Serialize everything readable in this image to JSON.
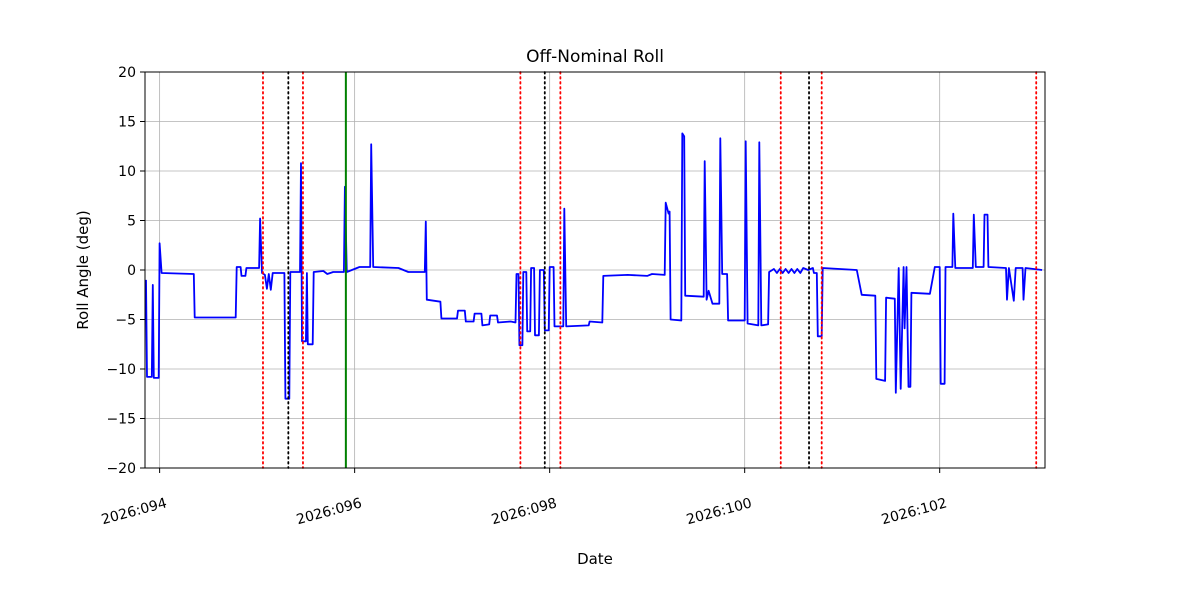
{
  "figure": {
    "title": "Off-Nominal Roll",
    "xlabel": "Date",
    "ylabel": "Roll Angle (deg)"
  },
  "chart_data": {
    "type": "line",
    "title": "Off-Nominal Roll",
    "xlabel": "Date",
    "ylabel": "Roll Angle (deg)",
    "xlim": [
      93.85,
      103.08
    ],
    "ylim": [
      -20,
      20
    ],
    "grid": true,
    "x_ticks": [
      {
        "value": 94,
        "label": "2026:094"
      },
      {
        "value": 96,
        "label": "2026:096"
      },
      {
        "value": 98,
        "label": "2026:098"
      },
      {
        "value": 100,
        "label": "2026:100"
      },
      {
        "value": 102,
        "label": "2026:102"
      }
    ],
    "y_ticks": [
      {
        "value": 20,
        "label": "20"
      },
      {
        "value": 15,
        "label": "15"
      },
      {
        "value": 10,
        "label": "10"
      },
      {
        "value": 5,
        "label": "5"
      },
      {
        "value": 0,
        "label": "0"
      },
      {
        "value": -5,
        "label": "−5"
      },
      {
        "value": -10,
        "label": "−10"
      },
      {
        "value": -15,
        "label": "−15"
      },
      {
        "value": -20,
        "label": "−20"
      }
    ],
    "colors": {
      "line": "#0000ff",
      "red_event": "#ff0000",
      "black_event": "#000000",
      "green_event": "#008000",
      "grid": "#b0b0b0",
      "frame": "#000000"
    },
    "event_lines": {
      "red_dotted": [
        95.06,
        95.47,
        97.7,
        98.11,
        100.37,
        100.79,
        102.99
      ],
      "black_dotted": [
        95.32,
        97.95,
        100.66
      ],
      "green_solid": [
        95.91
      ]
    },
    "series": [
      {
        "name": "roll_angle_deg",
        "color": "#0000ff",
        "points": [
          [
            93.86,
            -1.0
          ],
          [
            93.87,
            -10.8
          ],
          [
            93.92,
            -10.8
          ],
          [
            93.93,
            -1.5
          ],
          [
            93.94,
            -10.9
          ],
          [
            93.99,
            -10.9
          ],
          [
            94.0,
            2.7
          ],
          [
            94.02,
            -0.3
          ],
          [
            94.35,
            -0.4
          ],
          [
            94.36,
            -4.8
          ],
          [
            94.78,
            -4.8
          ],
          [
            94.79,
            0.3
          ],
          [
            94.83,
            0.3
          ],
          [
            94.84,
            -0.6
          ],
          [
            94.88,
            -0.6
          ],
          [
            94.89,
            0.2
          ],
          [
            95.02,
            0.2
          ],
          [
            95.03,
            5.2
          ],
          [
            95.05,
            -0.3
          ],
          [
            95.08,
            -0.5
          ],
          [
            95.1,
            -1.9
          ],
          [
            95.12,
            -0.4
          ],
          [
            95.14,
            -2.0
          ],
          [
            95.16,
            -0.3
          ],
          [
            95.28,
            -0.3
          ],
          [
            95.29,
            -13.0
          ],
          [
            95.33,
            -13.0
          ],
          [
            95.34,
            -0.2
          ],
          [
            95.44,
            -0.2
          ],
          [
            95.45,
            10.8
          ],
          [
            95.46,
            -7.2
          ],
          [
            95.5,
            -7.2
          ],
          [
            95.51,
            -0.3
          ],
          [
            95.52,
            -7.5
          ],
          [
            95.57,
            -7.5
          ],
          [
            95.58,
            -0.2
          ],
          [
            95.68,
            -0.1
          ],
          [
            95.72,
            -0.4
          ],
          [
            95.78,
            -0.2
          ],
          [
            95.89,
            -0.2
          ],
          [
            95.9,
            8.4
          ],
          [
            95.92,
            -0.2
          ],
          [
            96.05,
            0.3
          ],
          [
            96.16,
            0.3
          ],
          [
            96.17,
            12.7
          ],
          [
            96.19,
            0.3
          ],
          [
            96.45,
            0.2
          ],
          [
            96.55,
            -0.2
          ],
          [
            96.72,
            -0.2
          ],
          [
            96.73,
            4.9
          ],
          [
            96.74,
            -3.0
          ],
          [
            96.88,
            -3.2
          ],
          [
            96.89,
            -4.9
          ],
          [
            97.05,
            -4.9
          ],
          [
            97.06,
            -4.1
          ],
          [
            97.13,
            -4.1
          ],
          [
            97.14,
            -5.2
          ],
          [
            97.22,
            -5.2
          ],
          [
            97.23,
            -4.4
          ],
          [
            97.3,
            -4.4
          ],
          [
            97.31,
            -5.6
          ],
          [
            97.38,
            -5.5
          ],
          [
            97.39,
            -4.6
          ],
          [
            97.46,
            -4.6
          ],
          [
            97.47,
            -5.3
          ],
          [
            97.6,
            -5.2
          ],
          [
            97.65,
            -5.3
          ],
          [
            97.66,
            -0.4
          ],
          [
            97.68,
            -0.4
          ],
          [
            97.69,
            -7.6
          ],
          [
            97.72,
            -7.6
          ],
          [
            97.73,
            -0.2
          ],
          [
            97.76,
            -0.2
          ],
          [
            97.77,
            -6.2
          ],
          [
            97.8,
            -6.2
          ],
          [
            97.81,
            0.2
          ],
          [
            97.84,
            0.2
          ],
          [
            97.85,
            -6.6
          ],
          [
            97.89,
            -6.6
          ],
          [
            97.9,
            0.0
          ],
          [
            97.94,
            0.0
          ],
          [
            97.95,
            -6.1
          ],
          [
            97.99,
            -6.1
          ],
          [
            98.0,
            0.3
          ],
          [
            98.04,
            0.3
          ],
          [
            98.05,
            -5.7
          ],
          [
            98.14,
            -5.7
          ],
          [
            98.15,
            6.2
          ],
          [
            98.17,
            -5.7
          ],
          [
            98.4,
            -5.6
          ],
          [
            98.41,
            -5.2
          ],
          [
            98.54,
            -5.3
          ],
          [
            98.55,
            -0.6
          ],
          [
            98.8,
            -0.5
          ],
          [
            99.0,
            -0.6
          ],
          [
            99.05,
            -0.4
          ],
          [
            99.18,
            -0.5
          ],
          [
            99.19,
            6.8
          ],
          [
            99.22,
            5.7
          ],
          [
            99.23,
            5.9
          ],
          [
            99.24,
            -5.0
          ],
          [
            99.35,
            -5.1
          ],
          [
            99.36,
            13.8
          ],
          [
            99.38,
            13.5
          ],
          [
            99.39,
            -2.6
          ],
          [
            99.58,
            -2.7
          ],
          [
            99.59,
            11.0
          ],
          [
            99.61,
            -3.0
          ],
          [
            99.63,
            -2.1
          ],
          [
            99.67,
            -3.4
          ],
          [
            99.74,
            -3.4
          ],
          [
            99.75,
            13.3
          ],
          [
            99.77,
            -0.4
          ],
          [
            99.82,
            -0.4
          ],
          [
            99.83,
            -5.1
          ],
          [
            100.0,
            -5.1
          ],
          [
            100.01,
            13.0
          ],
          [
            100.03,
            -5.4
          ],
          [
            100.14,
            -5.6
          ],
          [
            100.15,
            12.9
          ],
          [
            100.17,
            -5.6
          ],
          [
            100.24,
            -5.5
          ],
          [
            100.25,
            -0.2
          ],
          [
            100.3,
            0.1
          ],
          [
            100.33,
            -0.3
          ],
          [
            100.36,
            0.1
          ],
          [
            100.39,
            -0.3
          ],
          [
            100.42,
            0.1
          ],
          [
            100.45,
            -0.3
          ],
          [
            100.48,
            0.1
          ],
          [
            100.51,
            -0.3
          ],
          [
            100.54,
            0.1
          ],
          [
            100.57,
            -0.3
          ],
          [
            100.6,
            0.2
          ],
          [
            100.65,
            0.0
          ],
          [
            100.7,
            0.2
          ],
          [
            100.71,
            -0.3
          ],
          [
            100.74,
            -0.3
          ],
          [
            100.75,
            -6.7
          ],
          [
            100.79,
            -6.7
          ],
          [
            100.8,
            0.2
          ],
          [
            101.15,
            0.0
          ],
          [
            101.2,
            -2.5
          ],
          [
            101.34,
            -2.6
          ],
          [
            101.35,
            -11.0
          ],
          [
            101.44,
            -11.2
          ],
          [
            101.45,
            -2.8
          ],
          [
            101.54,
            -2.9
          ],
          [
            101.55,
            -12.4
          ],
          [
            101.58,
            0.2
          ],
          [
            101.6,
            -12.0
          ],
          [
            101.63,
            0.3
          ],
          [
            101.64,
            -5.9
          ],
          [
            101.66,
            0.3
          ],
          [
            101.68,
            -11.8
          ],
          [
            101.7,
            -11.8
          ],
          [
            101.71,
            -2.3
          ],
          [
            101.9,
            -2.4
          ],
          [
            101.95,
            0.3
          ],
          [
            102.0,
            0.3
          ],
          [
            102.01,
            -11.5
          ],
          [
            102.05,
            -11.5
          ],
          [
            102.06,
            0.3
          ],
          [
            102.13,
            0.3
          ],
          [
            102.14,
            5.7
          ],
          [
            102.16,
            0.2
          ],
          [
            102.34,
            0.2
          ],
          [
            102.35,
            5.6
          ],
          [
            102.37,
            0.3
          ],
          [
            102.45,
            0.3
          ],
          [
            102.46,
            5.6
          ],
          [
            102.49,
            5.6
          ],
          [
            102.5,
            0.3
          ],
          [
            102.68,
            0.2
          ],
          [
            102.69,
            -3.0
          ],
          [
            102.71,
            0.2
          ],
          [
            102.76,
            -3.1
          ],
          [
            102.78,
            0.2
          ],
          [
            102.85,
            0.2
          ],
          [
            102.86,
            -3.0
          ],
          [
            102.88,
            0.2
          ],
          [
            103.05,
            0.0
          ]
        ]
      }
    ]
  }
}
